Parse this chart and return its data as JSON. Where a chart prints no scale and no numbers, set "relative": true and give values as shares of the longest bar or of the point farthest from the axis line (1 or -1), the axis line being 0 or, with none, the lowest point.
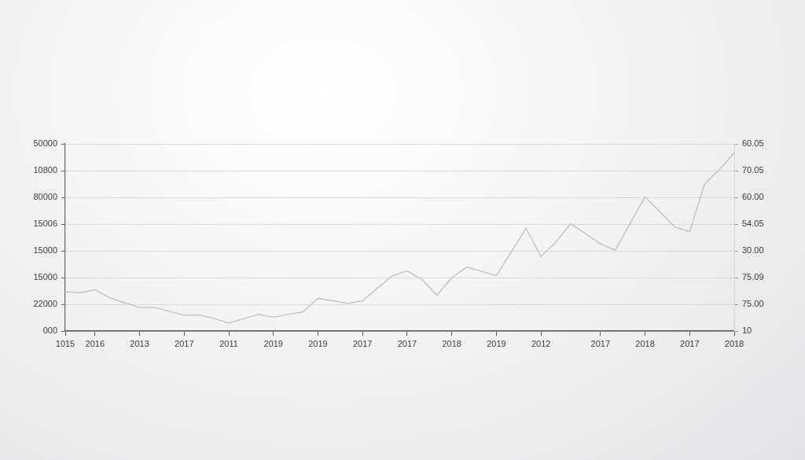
{
  "chart_data": {
    "type": "line",
    "relative": true,
    "categories": [
      "1015",
      null,
      "2016",
      null,
      null,
      "2013",
      null,
      null,
      "2017",
      null,
      null,
      "2011",
      null,
      null,
      "2019",
      null,
      null,
      "2019",
      null,
      null,
      "2017",
      null,
      null,
      "2017",
      null,
      null,
      "2018",
      null,
      null,
      "2019",
      null,
      null,
      "2012",
      null,
      null,
      null,
      "2017",
      null,
      null,
      "2018",
      null,
      null,
      "2017",
      null,
      null,
      "2018"
    ],
    "series": [
      {
        "color": "#c2c2c2",
        "values": [
          0.22,
          0.215,
          0.232,
          0.186,
          0.159,
          0.132,
          0.132,
          0.111,
          0.089,
          0.09,
          0.071,
          0.045,
          0.069,
          0.093,
          0.078,
          0.093,
          0.108,
          0.183,
          0.17,
          0.155,
          0.17,
          0.241,
          0.31,
          0.337,
          0.289,
          0.2,
          0.299,
          0.359,
          0.335,
          0.311,
          0.444,
          0.576,
          0.418,
          0.499,
          0.602,
          0.546,
          0.489,
          0.454,
          0.605,
          0.753,
          0.669,
          0.583,
          0.558,
          0.824,
          0.905,
          1
        ]
      }
    ],
    "y_categories": [
      "50000",
      "10800",
      "80000",
      "15006",
      "15000",
      "15000",
      "22000",
      "000"
    ],
    "y2_categories": [
      "60.05",
      "70.05",
      "60.00",
      "54.05",
      "30.00",
      "75.09",
      "75.00",
      "10"
    ],
    "grid": "y",
    "line_style": "solid"
  }
}
